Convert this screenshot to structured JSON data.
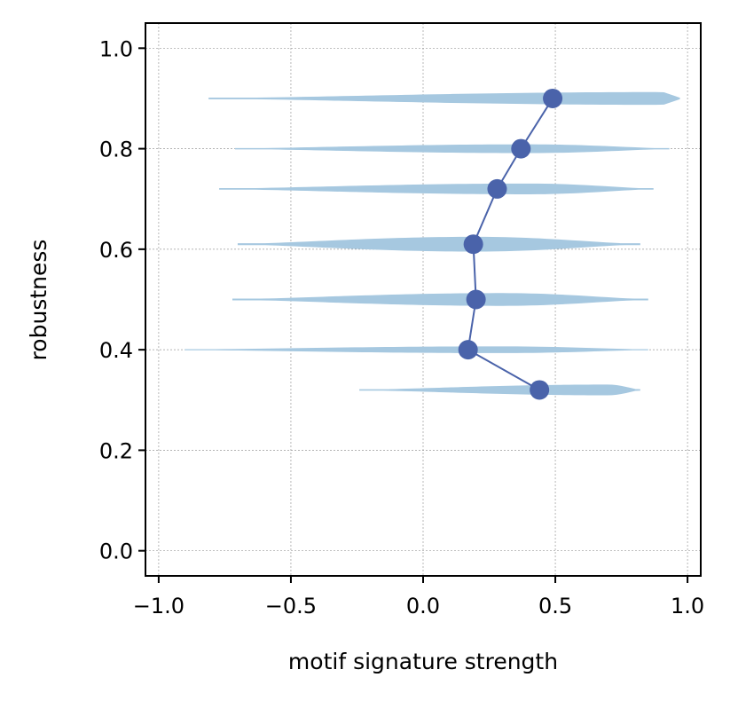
{
  "chart_data": {
    "type": "scatter",
    "xlabel": "motif signature strength",
    "ylabel": "robustness",
    "xlim": [
      -1.05,
      1.05
    ],
    "ylim": [
      -0.05,
      1.05
    ],
    "xticks": [
      -1.0,
      -0.5,
      0.0,
      0.5,
      1.0
    ],
    "xtick_labels": [
      "−1.0",
      "−0.5",
      "0.0",
      "0.5",
      "1.0"
    ],
    "yticks": [
      0.0,
      0.2,
      0.4,
      0.6,
      0.8,
      1.0
    ],
    "ytick_labels": [
      "0.0",
      "0.2",
      "0.4",
      "0.6",
      "0.8",
      "1.0"
    ],
    "grid": true,
    "colors": {
      "line": "#4a63aa",
      "marker": "#4a63aa",
      "violin": "#a6c8e0",
      "violin_dark": "#7ea9c9"
    },
    "series": [
      {
        "points": [
          {
            "x": 0.44,
            "y": 0.32
          },
          {
            "x": 0.17,
            "y": 0.4
          },
          {
            "x": 0.2,
            "y": 0.5
          },
          {
            "x": 0.19,
            "y": 0.61
          },
          {
            "x": 0.28,
            "y": 0.72
          },
          {
            "x": 0.37,
            "y": 0.8
          },
          {
            "x": 0.49,
            "y": 0.9
          }
        ]
      }
    ],
    "violins": [
      {
        "y": 0.9,
        "min": -0.81,
        "max": 0.97,
        "mode": 0.9,
        "peak": 0.012
      },
      {
        "y": 0.8,
        "min": -0.71,
        "max": 0.93,
        "mode": 0.4,
        "peak": 0.008
      },
      {
        "y": 0.72,
        "min": -0.77,
        "max": 0.87,
        "mode": 0.4,
        "peak": 0.01
      },
      {
        "y": 0.61,
        "min": -0.7,
        "max": 0.82,
        "mode": 0.2,
        "peak": 0.014
      },
      {
        "y": 0.5,
        "min": -0.72,
        "max": 0.85,
        "mode": 0.3,
        "peak": 0.012
      },
      {
        "y": 0.4,
        "min": -0.9,
        "max": 0.85,
        "mode": 0.3,
        "peak": 0.006
      },
      {
        "y": 0.32,
        "min": -0.24,
        "max": 0.82,
        "mode": 0.7,
        "peak": 0.01
      }
    ]
  }
}
